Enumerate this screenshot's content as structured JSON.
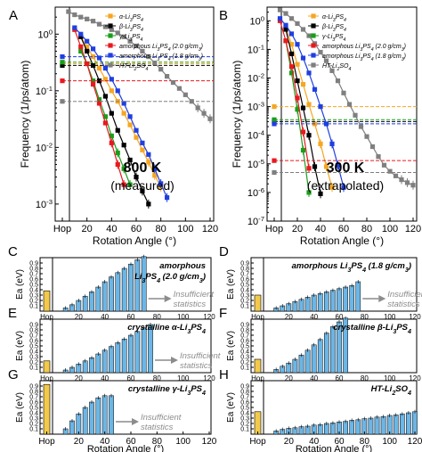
{
  "chart_data": [
    {
      "panel": "A",
      "type": "line",
      "log_y": true,
      "ylim": [
        0.0005,
        3
      ],
      "xlim": [
        0,
        120
      ],
      "ylabel": "Frequency (1/ps/atom)",
      "xlabel": "Rotation Angle (°)",
      "x_ticks": [
        "Hop",
        "20",
        "40",
        "60",
        "80",
        "100",
        "120"
      ],
      "y_ticks": [
        "10^-3",
        "10^-2",
        "10^-1",
        "10^0"
      ],
      "annotation": [
        "800 K",
        "(measured)"
      ],
      "legend": {
        "position": "top-right",
        "items": [
          "α-Li3PS4",
          "β-Li3PS4",
          "γ-Li3PS4",
          "amorphous Li3PS4 (2.0 g/cm3)",
          "amorphous Li3PS4 (1.8 g/cm3)",
          "HT-Li2SO4"
        ]
      },
      "series": [
        {
          "name": "α-Li3PS4",
          "color": "#f5a623",
          "hop": 0.3,
          "x": [
            15,
            20,
            25,
            30,
            35,
            40,
            45,
            50,
            55,
            60,
            65,
            70,
            75,
            80
          ],
          "y": [
            0.9,
            0.6,
            0.4,
            0.25,
            0.16,
            0.1,
            0.065,
            0.04,
            0.025,
            0.015,
            0.009,
            0.0055,
            0.0032,
            0.002
          ]
        },
        {
          "name": "β-Li3PS4",
          "color": "#000000",
          "hop": 0.28,
          "x": [
            15,
            20,
            25,
            30,
            35,
            40,
            45,
            50,
            55,
            60,
            65,
            70
          ],
          "y": [
            0.9,
            0.5,
            0.28,
            0.15,
            0.08,
            0.04,
            0.02,
            0.011,
            0.006,
            0.003,
            0.0017,
            0.001
          ]
        },
        {
          "name": "γ-Li3PS4",
          "color": "#1a9e1a",
          "hop": 0.32,
          "x": [
            15,
            20,
            25,
            30,
            35,
            40,
            45,
            50,
            55
          ],
          "y": [
            0.5,
            0.3,
            0.15,
            0.07,
            0.035,
            0.016,
            0.008,
            0.0042,
            0.0022
          ]
        },
        {
          "name": "amorphous Li3PS4 (2.0 g/cm3)",
          "color": "#e8191f",
          "hop": 0.15,
          "x": [
            10,
            15,
            20,
            25,
            30,
            35,
            40,
            45,
            50
          ],
          "y": [
            1.2,
            0.6,
            0.3,
            0.13,
            0.06,
            0.027,
            0.012,
            0.005,
            0.0022
          ]
        },
        {
          "name": "amorphous Li3PS4 (1.8 g/cm3)",
          "color": "#1f3fe0",
          "hop": 0.4,
          "x": [
            10,
            15,
            20,
            25,
            30,
            35,
            40,
            45,
            50,
            55,
            60,
            65,
            70,
            75,
            80,
            85
          ],
          "y": [
            1.3,
            1.0,
            0.75,
            0.55,
            0.38,
            0.25,
            0.16,
            0.1,
            0.06,
            0.035,
            0.02,
            0.012,
            0.0075,
            0.0042,
            0.0023,
            0.0013
          ]
        },
        {
          "name": "HT-Li2SO4",
          "color": "#7f7f7f",
          "hop": 0.065,
          "x": [
            5,
            10,
            15,
            20,
            25,
            30,
            35,
            40,
            45,
            50,
            55,
            60,
            65,
            70,
            75,
            80,
            85,
            90,
            95,
            100,
            105,
            110,
            115,
            120
          ],
          "y": [
            2.5,
            2.2,
            2.0,
            1.85,
            1.7,
            1.5,
            1.35,
            1.2,
            1.05,
            0.9,
            0.75,
            0.62,
            0.5,
            0.4,
            0.31,
            0.24,
            0.18,
            0.14,
            0.11,
            0.085,
            0.065,
            0.05,
            0.04,
            0.032
          ]
        }
      ]
    },
    {
      "panel": "B",
      "type": "line",
      "log_y": true,
      "ylim": [
        1e-07,
        3
      ],
      "xlim": [
        0,
        120
      ],
      "ylabel": "Frequency (1/ps/atom)",
      "xlabel": "Rotation Angle (°)",
      "x_ticks": [
        "Hop",
        "20",
        "40",
        "60",
        "80",
        "100",
        "120"
      ],
      "y_ticks": [
        "10^-7",
        "10^-6",
        "10^-5",
        "10^-4",
        "10^-3",
        "10^-2",
        "10^-1",
        "10^0"
      ],
      "annotation": [
        "300 K",
        "(extrapolated)"
      ],
      "legend": {
        "position": "top-right",
        "items": [
          "α-Li3PS4",
          "β-Li3PS4",
          "γ-Li3PS4",
          "amorphous Li3PS4 (2.0 g/cm3)",
          "amorphous Li3PS4 (1.8 g/cm3)",
          "HT-Li2SO4"
        ]
      },
      "series": [
        {
          "name": "α-Li3PS4",
          "color": "#f5a623",
          "hop": 0.001,
          "x": [
            10,
            15,
            20,
            25,
            30,
            35,
            40,
            45,
            50
          ],
          "y": [
            0.6,
            0.15,
            0.03,
            0.006,
            0.0012,
            0.00025,
            5e-05,
            8e-06,
            1.5e-06
          ]
        },
        {
          "name": "β-Li3PS4",
          "color": "#000000",
          "hop": 0.0003,
          "x": [
            10,
            15,
            20,
            25,
            30,
            35,
            40
          ],
          "y": [
            0.5,
            0.07,
            0.008,
            0.0009,
            0.0001,
            8e-06,
            9e-07
          ]
        },
        {
          "name": "γ-Li3PS4",
          "color": "#1a9e1a",
          "hop": 0.00035,
          "x": [
            10,
            15,
            20,
            25,
            30
          ],
          "y": [
            0.2,
            0.015,
            0.0008,
            3e-05,
            1e-06
          ]
        },
        {
          "name": "amorphous Li3PS4 (2.0 g/cm3)",
          "color": "#e8191f",
          "hop": 1.3e-05,
          "x": [
            5,
            10,
            15,
            20,
            25,
            30
          ],
          "y": [
            1.0,
            0.2,
            0.025,
            0.002,
            0.00013,
            7e-06
          ]
        },
        {
          "name": "amorphous Li3PS4 (1.8 g/cm3)",
          "color": "#1f3fe0",
          "hop": 0.00025,
          "x": [
            5,
            10,
            15,
            20,
            25,
            30,
            35,
            40,
            45,
            50,
            55,
            60
          ],
          "y": [
            1.2,
            0.7,
            0.35,
            0.15,
            0.05,
            0.015,
            0.004,
            0.001,
            0.00025,
            5e-05,
            9e-06,
            1.5e-06
          ]
        },
        {
          "name": "HT-Li2SO4",
          "color": "#7f7f7f",
          "hop": 5e-06,
          "x": [
            5,
            10,
            15,
            20,
            25,
            30,
            35,
            40,
            45,
            50,
            55,
            60,
            65,
            70,
            75,
            80,
            85,
            90,
            95,
            100,
            105,
            110,
            115,
            120
          ],
          "y": [
            2.4,
            1.8,
            1.2,
            0.8,
            0.5,
            0.3,
            0.16,
            0.08,
            0.04,
            0.018,
            0.008,
            0.003,
            0.0012,
            0.0005,
            0.0002,
            9e-05,
            4e-05,
            1.8e-05,
            9e-06,
            5.5e-06,
            3.8e-06,
            2.8e-06,
            2.2e-06,
            1.8e-06
          ]
        }
      ]
    },
    {
      "panel": "C",
      "type": "bar",
      "title": [
        "amorphous",
        "Li3PS4 (2.0 g/cm3)"
      ],
      "insufficient_statistics": true,
      "ylim": [
        0,
        1.0
      ],
      "ylabel": "Ea (eV)",
      "y_ticks": [
        "0.1",
        "0.2",
        "0.3",
        "0.4",
        "0.5",
        "0.6",
        "0.7",
        "0.8",
        "0.9"
      ],
      "hop": 0.38,
      "x": [
        10,
        15,
        20,
        25,
        30,
        35,
        40,
        45,
        50,
        55,
        60,
        65,
        70
      ],
      "values": [
        0.06,
        0.12,
        0.2,
        0.28,
        0.36,
        0.45,
        0.55,
        0.64,
        0.72,
        0.8,
        0.88,
        0.96,
        1.02
      ]
    },
    {
      "panel": "D",
      "type": "bar",
      "title": [
        "amorphous Li3PS4 (1.8 g/cm3)"
      ],
      "insufficient_statistics": true,
      "ylim": [
        0,
        1.0
      ],
      "ylabel": "Ea (eV)",
      "y_ticks": [
        "0.1",
        "0.2",
        "0.3",
        "0.4",
        "0.5",
        "0.6",
        "0.7",
        "0.8",
        "0.9"
      ],
      "hop": 0.3,
      "x": [
        10,
        15,
        20,
        25,
        30,
        35,
        40,
        45,
        50,
        55,
        60,
        65,
        70,
        75
      ],
      "values": [
        0.06,
        0.1,
        0.14,
        0.18,
        0.22,
        0.26,
        0.3,
        0.33,
        0.36,
        0.39,
        0.42,
        0.45,
        0.48,
        0.55
      ]
    },
    {
      "panel": "E",
      "type": "bar",
      "title": [
        "crystalline α-Li3PS4"
      ],
      "insufficient_statistics": true,
      "ylim": [
        0,
        1.0
      ],
      "ylabel": "Ea (eV)",
      "y_ticks": [
        "0.1",
        "0.2",
        "0.3",
        "0.4",
        "0.5",
        "0.6",
        "0.7",
        "0.8",
        "0.9"
      ],
      "hop": 0.22,
      "x": [
        10,
        15,
        20,
        25,
        30,
        35,
        40,
        45,
        50,
        55,
        60,
        65,
        70,
        75
      ],
      "values": [
        0.05,
        0.1,
        0.16,
        0.22,
        0.28,
        0.35,
        0.42,
        0.49,
        0.56,
        0.63,
        0.7,
        0.77,
        0.84,
        0.9
      ]
    },
    {
      "panel": "F",
      "type": "bar",
      "title": [
        "crystalline β-Li3PS4"
      ],
      "ylim": [
        0,
        1.0
      ],
      "ylabel": "Ea (eV)",
      "y_ticks": [
        "0.1",
        "0.2",
        "0.3",
        "0.4",
        "0.5",
        "0.6",
        "0.7",
        "0.8",
        "0.9"
      ],
      "hop": 0.25,
      "x": [
        10,
        15,
        20,
        25,
        30,
        35,
        40,
        45,
        50,
        55,
        60,
        65
      ],
      "values": [
        0.06,
        0.12,
        0.18,
        0.25,
        0.33,
        0.42,
        0.52,
        0.62,
        0.74,
        0.86,
        0.95,
        1.02
      ]
    },
    {
      "panel": "G",
      "type": "bar",
      "title": [
        "crystalline γ-Li3PS4"
      ],
      "insufficient_statistics": true,
      "ylim": [
        0,
        1.0
      ],
      "ylabel": "Ea (eV)",
      "y_ticks": [
        "0.1",
        "0.2",
        "0.3",
        "0.4",
        "0.5",
        "0.6",
        "0.7",
        "0.8",
        "0.9"
      ],
      "hop": 0.93,
      "x": [
        10,
        15,
        20,
        25,
        30,
        35,
        40,
        45
      ],
      "values": [
        0.1,
        0.25,
        0.38,
        0.5,
        0.6,
        0.68,
        0.72,
        0.72
      ]
    },
    {
      "panel": "H",
      "type": "bar",
      "title": [
        "HT-Li2SO4"
      ],
      "ylim": [
        0,
        1.0
      ],
      "ylabel": "Ea (eV)",
      "y_ticks": [
        "0.1",
        "0.2",
        "0.3",
        "0.4",
        "0.5",
        "0.6",
        "0.7",
        "0.8",
        "0.9"
      ],
      "hop": 0.42,
      "x": [
        10,
        15,
        20,
        25,
        30,
        35,
        40,
        45,
        50,
        55,
        60,
        65,
        70,
        75,
        80,
        85,
        90,
        95,
        100,
        105,
        110,
        115,
        120
      ],
      "values": [
        0.06,
        0.09,
        0.11,
        0.12,
        0.14,
        0.15,
        0.17,
        0.18,
        0.2,
        0.21,
        0.23,
        0.24,
        0.26,
        0.27,
        0.29,
        0.3,
        0.32,
        0.33,
        0.35,
        0.36,
        0.38,
        0.4,
        0.42
      ]
    }
  ],
  "panel_labels": [
    "A",
    "B",
    "C",
    "D",
    "E",
    "F",
    "G",
    "H"
  ],
  "insufficient_text": [
    "Insufficient",
    "statistics"
  ],
  "hop_label": "Hop",
  "xaxis_label": "Rotation Angle (°)",
  "colors": {
    "hop_bar": "#f2c94c",
    "bar": "#6cb6e6",
    "bar_edge": "#000000",
    "arrow": "#8c8c8c"
  }
}
